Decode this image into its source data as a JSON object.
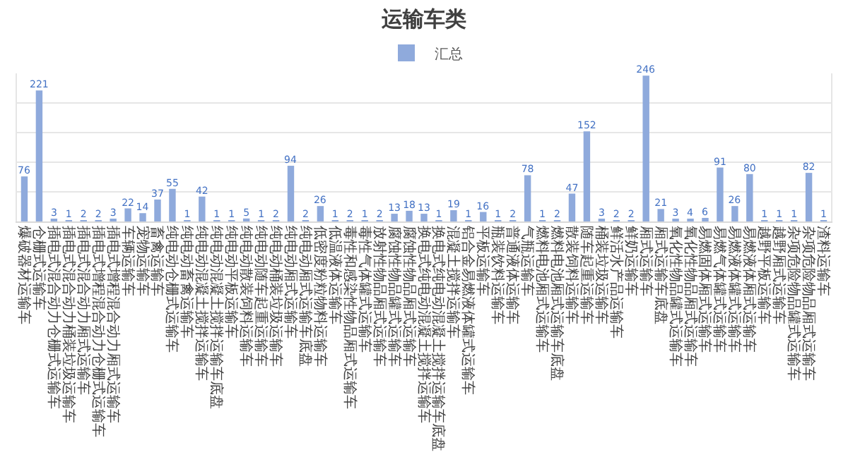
{
  "chart_data": {
    "type": "bar",
    "title": "运输车类",
    "categories": [
      "爆破器材运输车",
      "仓栅式运输车",
      "插电式混合动力仓栅式运输车",
      "插电式混合动力桶装垃圾运输车",
      "插电式混合动力厢式运输车",
      "插电式增程混合动力仓栅式运输车",
      "插电式增程混合动力厢式运输车",
      "车辆运输车",
      "宠物运输车",
      "畜禽运输车",
      "纯电动仓栅式运输车",
      "纯电动畜禽运输车",
      "纯电动混凝土搅拌运输车",
      "纯电动混凝土搅拌运输车底盘",
      "纯电动平板运输车",
      "纯电动散装饲料运输车",
      "纯电动随车起重运输车",
      "纯电动桶装垃圾运输车",
      "纯电动厢式运输车",
      "纯电动厢式运输车底盘",
      "低密度粉粒物料运输车",
      "低温液体运输车",
      "毒性和感染性物品厢式运输车",
      "毒性气体罐式运输车",
      "放射性物品厢式运输车",
      "腐蚀性物品罐式运输车",
      "腐蚀性物品厢式运输车",
      "换电式纯电动混凝土搅拌运输车",
      "换电式纯电动混凝土搅拌运输车底盘",
      "混凝土搅拌运输车",
      "铝合金易燃液体罐式运输车",
      "平板运输车",
      "瓶装饮料运输车",
      "普通液体运输车",
      "气瓶运输车",
      "燃料电池厢式运输车",
      "燃料电池厢式运输车底盘",
      "散装饲料运输车",
      "随车起重运输车",
      "桶装垃圾运输车",
      "鲜活水产品运输车",
      "鲜奶运输车",
      "厢式运输车",
      "厢式运输车底盘",
      "氧化性物品罐式运输车",
      "氧化性物品厢式运输车",
      "易燃固体厢式运输车",
      "易燃气体罐式运输车",
      "易燃液体罐式运输车",
      "易燃液体厢式运输车",
      "越野平板运输车",
      "越野厢式运输车",
      "杂项危险物品罐式运输车",
      "杂项危险物品厢式运输车",
      "渣料运输车"
    ],
    "series": [
      {
        "name": "汇总",
        "color": "#8faadc",
        "values": [
          76,
          221,
          3,
          1,
          2,
          2,
          3,
          22,
          14,
          37,
          55,
          1,
          42,
          1,
          1,
          5,
          1,
          2,
          94,
          2,
          26,
          1,
          2,
          1,
          2,
          13,
          18,
          13,
          1,
          19,
          1,
          16,
          1,
          2,
          78,
          1,
          2,
          47,
          152,
          3,
          2,
          2,
          246,
          21,
          3,
          4,
          6,
          91,
          26,
          80,
          1,
          1,
          1,
          82,
          1
        ]
      }
    ],
    "ylim": [
      0,
      250
    ],
    "yticks": [
      {
        "value": 0,
        "label": null
      },
      {
        "value": 50,
        "label": null
      },
      {
        "value": 100,
        "label": null
      },
      {
        "value": 150,
        "label": null
      },
      {
        "value": 200,
        "label": null
      }
    ],
    "tick_labels": "x",
    "grid": "y",
    "legend": "top",
    "data_labels": true
  }
}
